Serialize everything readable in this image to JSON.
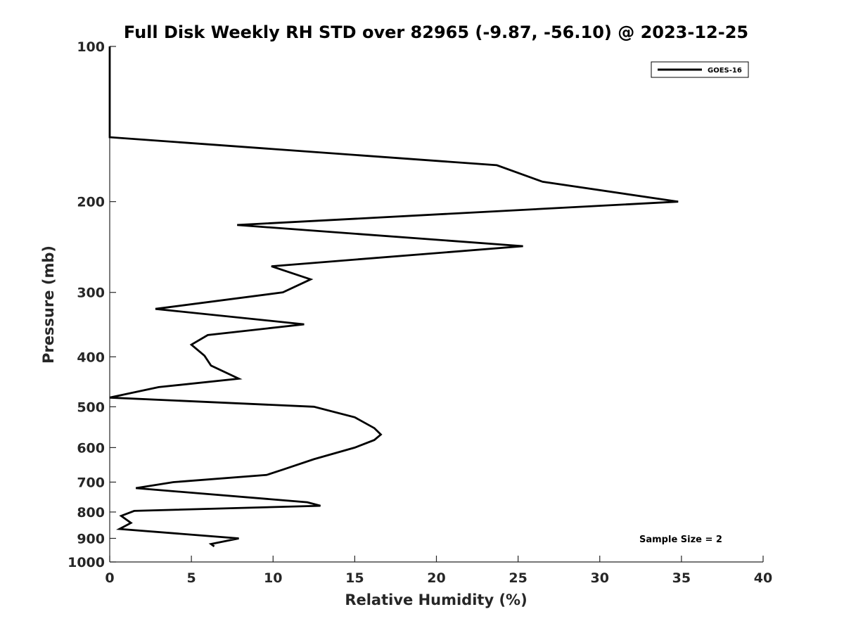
{
  "chart_data": {
    "type": "line",
    "title": "Full Disk Weekly RH STD over 82965 (-9.87, -56.10) @ 2023-12-25",
    "xlabel": "Relative Humidity (%)",
    "ylabel": "Pressure (mb)",
    "xlim": [
      0,
      40
    ],
    "ylim": [
      100,
      1000
    ],
    "y_scale": "log",
    "y_reversed": true,
    "x_ticks": [
      0,
      5,
      10,
      15,
      20,
      25,
      30,
      35,
      40
    ],
    "y_ticks": [
      100,
      200,
      300,
      400,
      500,
      600,
      700,
      800,
      900,
      1000
    ],
    "grid": false,
    "legend_position": "top-right",
    "series": [
      {
        "name": "GOES-16",
        "color": "#000000",
        "points": [
          [
            0.0,
            100
          ],
          [
            0.0,
            103
          ],
          [
            0.0,
            150
          ],
          [
            23.7,
            170
          ],
          [
            26.5,
            183
          ],
          [
            34.8,
            200
          ],
          [
            7.8,
            222
          ],
          [
            25.3,
            244
          ],
          [
            9.9,
            267
          ],
          [
            12.3,
            283
          ],
          [
            10.6,
            300
          ],
          [
            2.8,
            323
          ],
          [
            11.9,
            346
          ],
          [
            6.0,
            363
          ],
          [
            5.0,
            379
          ],
          [
            5.8,
            398
          ],
          [
            6.2,
            416
          ],
          [
            7.9,
            441
          ],
          [
            3.0,
            458
          ],
          [
            0.0,
            480
          ],
          [
            12.5,
            500
          ],
          [
            15.0,
            524
          ],
          [
            16.2,
            550
          ],
          [
            16.6,
            566
          ],
          [
            16.2,
            580
          ],
          [
            15.0,
            600
          ],
          [
            12.5,
            632
          ],
          [
            10.6,
            662
          ],
          [
            9.6,
            678
          ],
          [
            3.9,
            700
          ],
          [
            1.6,
            719
          ],
          [
            12.1,
            766
          ],
          [
            12.9,
            778
          ],
          [
            1.5,
            796
          ],
          [
            0.7,
            814
          ],
          [
            1.3,
            840
          ],
          [
            0.6,
            863
          ],
          [
            7.9,
            900
          ],
          [
            6.2,
            923
          ],
          [
            6.4,
            933
          ]
        ]
      }
    ],
    "annotations": [
      "Sample Size = 2"
    ]
  }
}
